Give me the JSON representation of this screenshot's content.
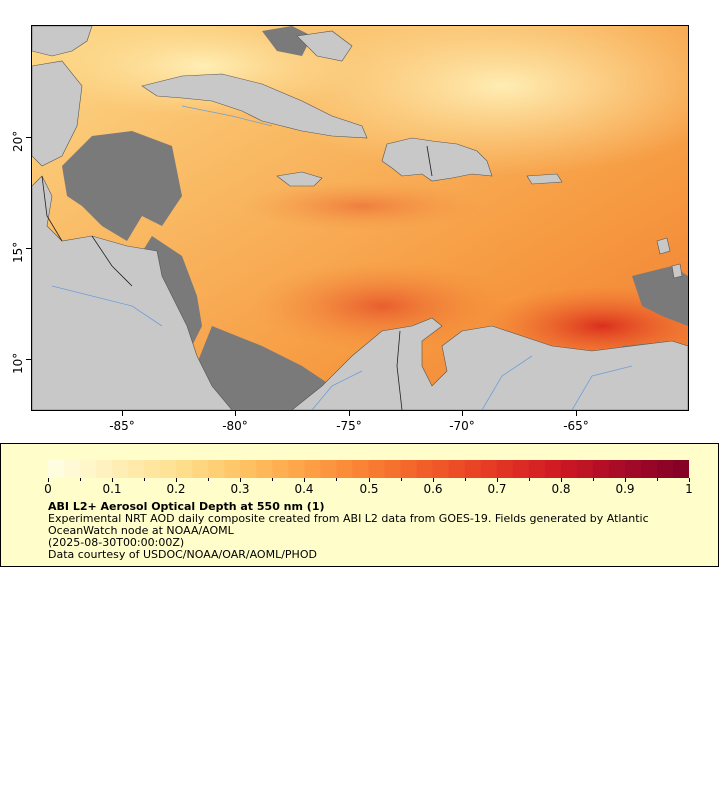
{
  "map": {
    "x_ticks": [
      "-85°",
      "-80°",
      "-75°",
      "-70°",
      "-65°"
    ],
    "y_ticks": [
      "20°",
      "15°",
      "10°"
    ],
    "colors": {
      "land": "#c8c8c8",
      "no_data": "#7a7a7a",
      "low_aod": "#fee8a6",
      "mid_aod": "#f7a24c",
      "high_aod": "#dd3a20",
      "rivers": "#6f9fd8",
      "borders": "#555555"
    }
  },
  "legend": {
    "colorbar_labels": [
      "0",
      "0.1",
      "0.2",
      "0.3",
      "0.4",
      "0.5",
      "0.6",
      "0.7",
      "0.8",
      "0.9",
      "1"
    ],
    "title": "ABI L2+ Aerosol Optical Depth at 550 nm (1)",
    "description_line1": "Experimental NRT AOD daily composite created from ABI L2 data from GOES-19. Fields generated by Atlantic OceanWatch node at NOAA/AOML",
    "description_line2": "(2025-08-30T00:00:00Z)",
    "description_line3": "Data courtesy of USDOC/NOAA/OAR/AOML/PHOD"
  }
}
